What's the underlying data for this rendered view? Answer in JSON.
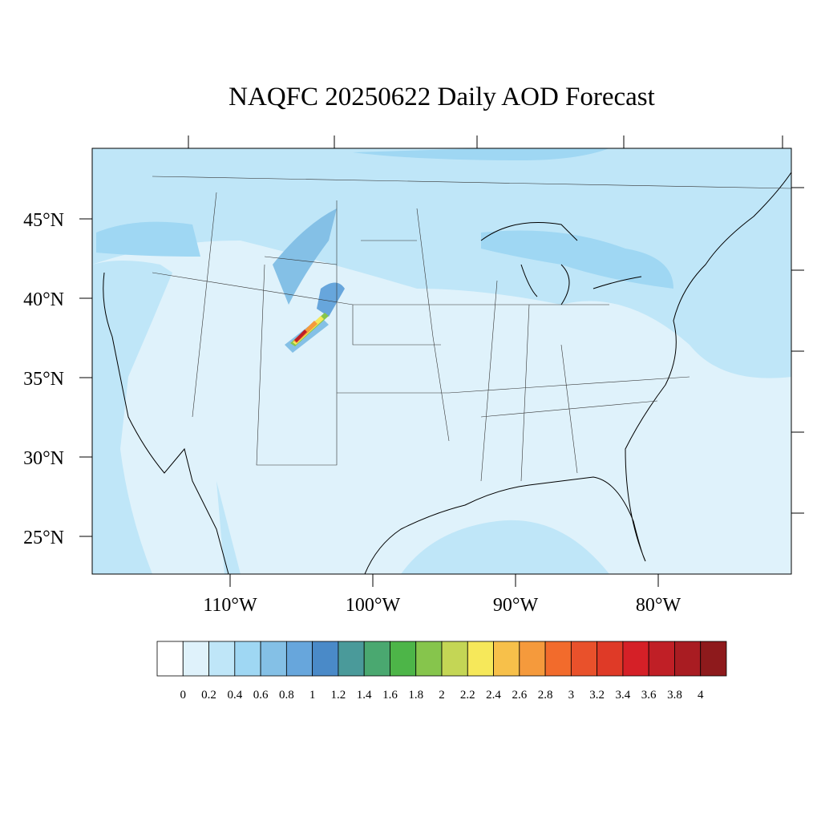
{
  "title": "NAQFC 20250622 Daily AOD Forecast",
  "lat_labels": [
    "45°N",
    "40°N",
    "35°N",
    "30°N",
    "25°N"
  ],
  "lon_labels": [
    "110°W",
    "100°W",
    "90°W",
    "80°W"
  ],
  "colorbar": {
    "levels": [
      0,
      0.2,
      0.4,
      0.6,
      0.8,
      1,
      1.2,
      1.4,
      1.6,
      1.8,
      2,
      2.2,
      2.4,
      2.6,
      2.8,
      3,
      3.2,
      3.4,
      3.6,
      3.8,
      4
    ],
    "colors": [
      "#ffffff",
      "#dff2fb",
      "#bfe6f8",
      "#9fd7f3",
      "#84c0e6",
      "#67a6dc",
      "#4a8ac8",
      "#4a9a9a",
      "#4aa870",
      "#4db548",
      "#86c54c",
      "#c4d655",
      "#f6e85a",
      "#f7c04a",
      "#f59a3c",
      "#f26b2c",
      "#e9512b",
      "#df3a27",
      "#d52027",
      "#c01f26",
      "#a91c22",
      "#8e1a1c"
    ]
  }
}
